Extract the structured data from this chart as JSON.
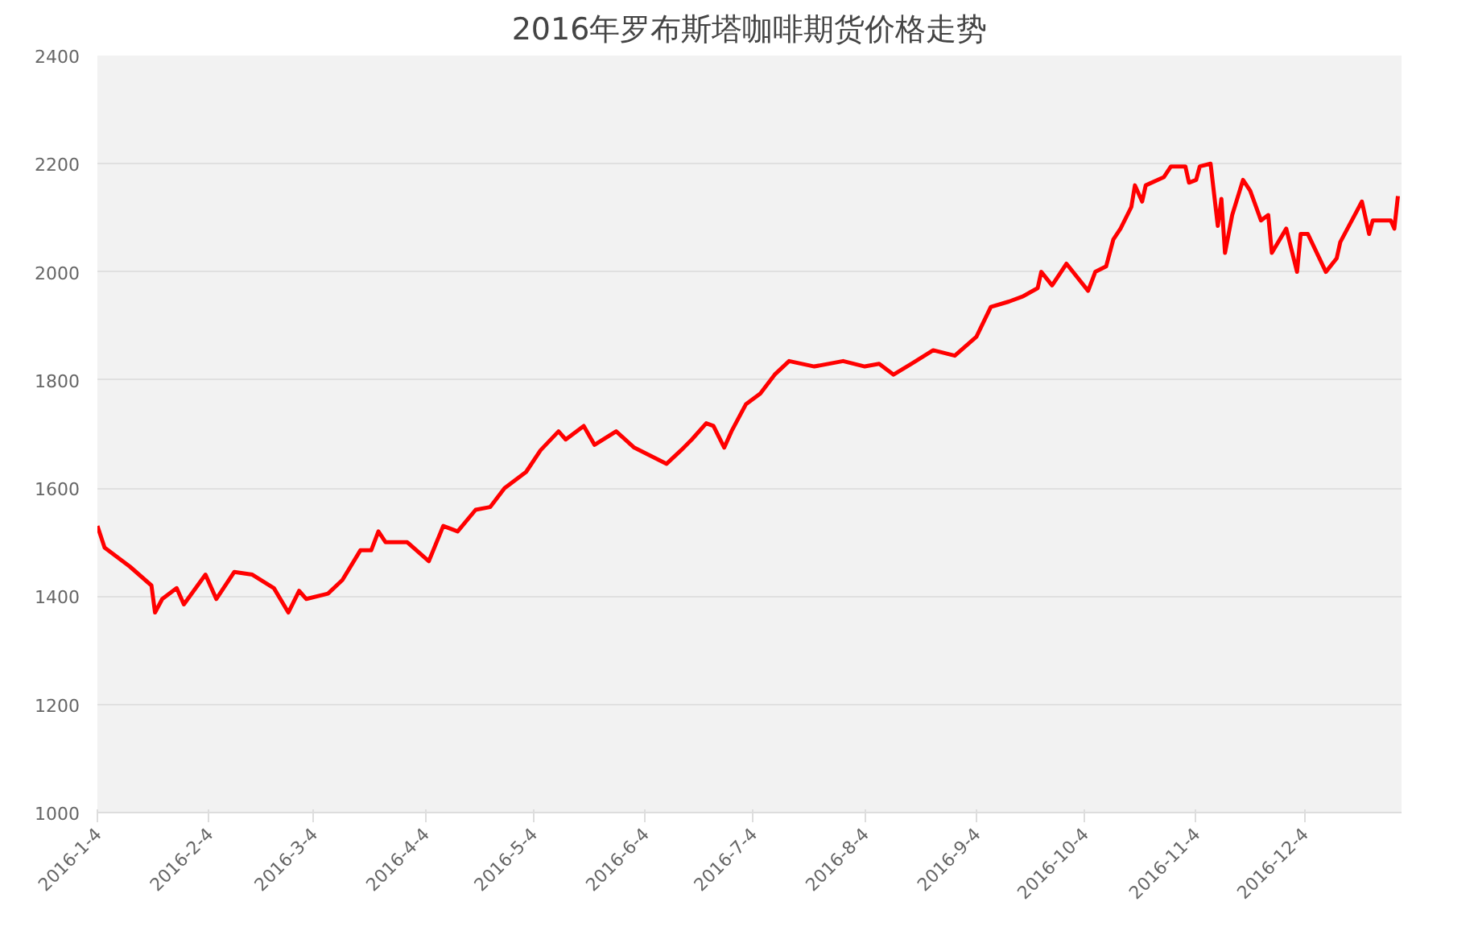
{
  "chart_data": {
    "type": "line",
    "title": "2016年罗布斯塔咖啡期货价格走势",
    "x": [
      "2016-01-04",
      "2016-01-06",
      "2016-01-13",
      "2016-01-19",
      "2016-01-20",
      "2016-01-22",
      "2016-01-26",
      "2016-01-28",
      "2016-02-03",
      "2016-02-06",
      "2016-02-11",
      "2016-02-16",
      "2016-02-22",
      "2016-02-26",
      "2016-02-29",
      "2016-03-02",
      "2016-03-08",
      "2016-03-12",
      "2016-03-17",
      "2016-03-20",
      "2016-03-22",
      "2016-03-24",
      "2016-03-30",
      "2016-04-05",
      "2016-04-09",
      "2016-04-13",
      "2016-04-18",
      "2016-04-22",
      "2016-04-26",
      "2016-05-02",
      "2016-05-06",
      "2016-05-11",
      "2016-05-13",
      "2016-05-18",
      "2016-05-21",
      "2016-05-27",
      "2016-06-01",
      "2016-06-10",
      "2016-06-14",
      "2016-06-17",
      "2016-06-21",
      "2016-06-23",
      "2016-06-26",
      "2016-06-28",
      "2016-07-02",
      "2016-07-06",
      "2016-07-10",
      "2016-07-14",
      "2016-07-21",
      "2016-07-29",
      "2016-08-04",
      "2016-08-08",
      "2016-08-12",
      "2016-08-17",
      "2016-08-23",
      "2016-08-29",
      "2016-09-04",
      "2016-09-08",
      "2016-09-13",
      "2016-09-17",
      "2016-09-21",
      "2016-09-22",
      "2016-09-25",
      "2016-09-29",
      "2016-10-05",
      "2016-10-07",
      "2016-10-10",
      "2016-10-12",
      "2016-10-14",
      "2016-10-17",
      "2016-10-18",
      "2016-10-20",
      "2016-10-21",
      "2016-10-26",
      "2016-10-28",
      "2016-11-01",
      "2016-11-02",
      "2016-11-04",
      "2016-11-05",
      "2016-11-08",
      "2016-11-10",
      "2016-11-11",
      "2016-11-12",
      "2016-11-14",
      "2016-11-17",
      "2016-11-19",
      "2016-11-22",
      "2016-11-24",
      "2016-11-25",
      "2016-11-29",
      "2016-12-02",
      "2016-12-03",
      "2016-12-05",
      "2016-12-10",
      "2016-12-13",
      "2016-12-14",
      "2016-12-20",
      "2016-12-22",
      "2016-12-23",
      "2016-12-28",
      "2016-12-29",
      "2016-12-30"
    ],
    "series": [
      {
        "color": "#ff0000",
        "values": [
          1530,
          1490,
          1455,
          1420,
          1370,
          1395,
          1415,
          1385,
          1440,
          1395,
          1445,
          1440,
          1415,
          1370,
          1410,
          1395,
          1405,
          1430,
          1485,
          1485,
          1520,
          1500,
          1500,
          1465,
          1530,
          1520,
          1560,
          1565,
          1600,
          1630,
          1670,
          1705,
          1690,
          1715,
          1680,
          1705,
          1675,
          1645,
          1670,
          1690,
          1720,
          1715,
          1675,
          1705,
          1755,
          1775,
          1810,
          1835,
          1825,
          1835,
          1825,
          1830,
          1810,
          1830,
          1855,
          1845,
          1880,
          1935,
          1945,
          1955,
          1970,
          2000,
          1975,
          2015,
          1965,
          2000,
          2010,
          2060,
          2080,
          2120,
          2160,
          2130,
          2160,
          2175,
          2195,
          2195,
          2165,
          2170,
          2195,
          2200,
          2085,
          2135,
          2035,
          2105,
          2170,
          2150,
          2095,
          2105,
          2035,
          2080,
          2000,
          2070,
          2070,
          2000,
          2025,
          2055,
          2130,
          2070,
          2095,
          2095,
          2080,
          2140
        ]
      }
    ],
    "xlim": [
      "2016-01-04",
      "2016-12-31"
    ],
    "xticks": [
      {
        "value": "2016-01-04",
        "label": "2016-1-4"
      },
      {
        "value": "2016-02-04",
        "label": "2016-2-4"
      },
      {
        "value": "2016-03-04",
        "label": "2016-3-4"
      },
      {
        "value": "2016-04-04",
        "label": "2016-4-4"
      },
      {
        "value": "2016-05-04",
        "label": "2016-5-4"
      },
      {
        "value": "2016-06-04",
        "label": "2016-6-4"
      },
      {
        "value": "2016-07-04",
        "label": "2016-7-4"
      },
      {
        "value": "2016-08-04",
        "label": "2016-8-4"
      },
      {
        "value": "2016-09-04",
        "label": "2016-9-4"
      },
      {
        "value": "2016-10-04",
        "label": "2016-10-4"
      },
      {
        "value": "2016-11-04",
        "label": "2016-11-4"
      },
      {
        "value": "2016-12-04",
        "label": "2016-12-4"
      }
    ],
    "ylim": [
      1000,
      2400
    ],
    "yticks": [
      1000,
      1200,
      1400,
      1600,
      1800,
      2000,
      2200,
      2400
    ],
    "grid": "y",
    "marker": "none",
    "line_style": "solid"
  }
}
